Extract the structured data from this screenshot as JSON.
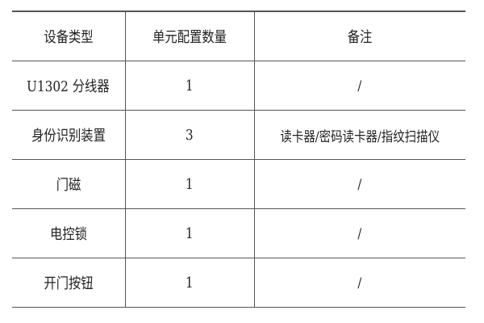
{
  "table": {
    "headers": [
      "设备类型",
      "单元配置数量",
      "备注"
    ],
    "rows": [
      [
        "U1302 分线器",
        "1",
        "/"
      ],
      [
        "身份识别装置",
        "3",
        "读卡器/密码读卡器/指纹扫描仪"
      ],
      [
        "门磁",
        "1",
        "/"
      ],
      [
        "电控锁",
        "1",
        "/"
      ],
      [
        "开门按钮",
        "1",
        "/"
      ]
    ]
  }
}
